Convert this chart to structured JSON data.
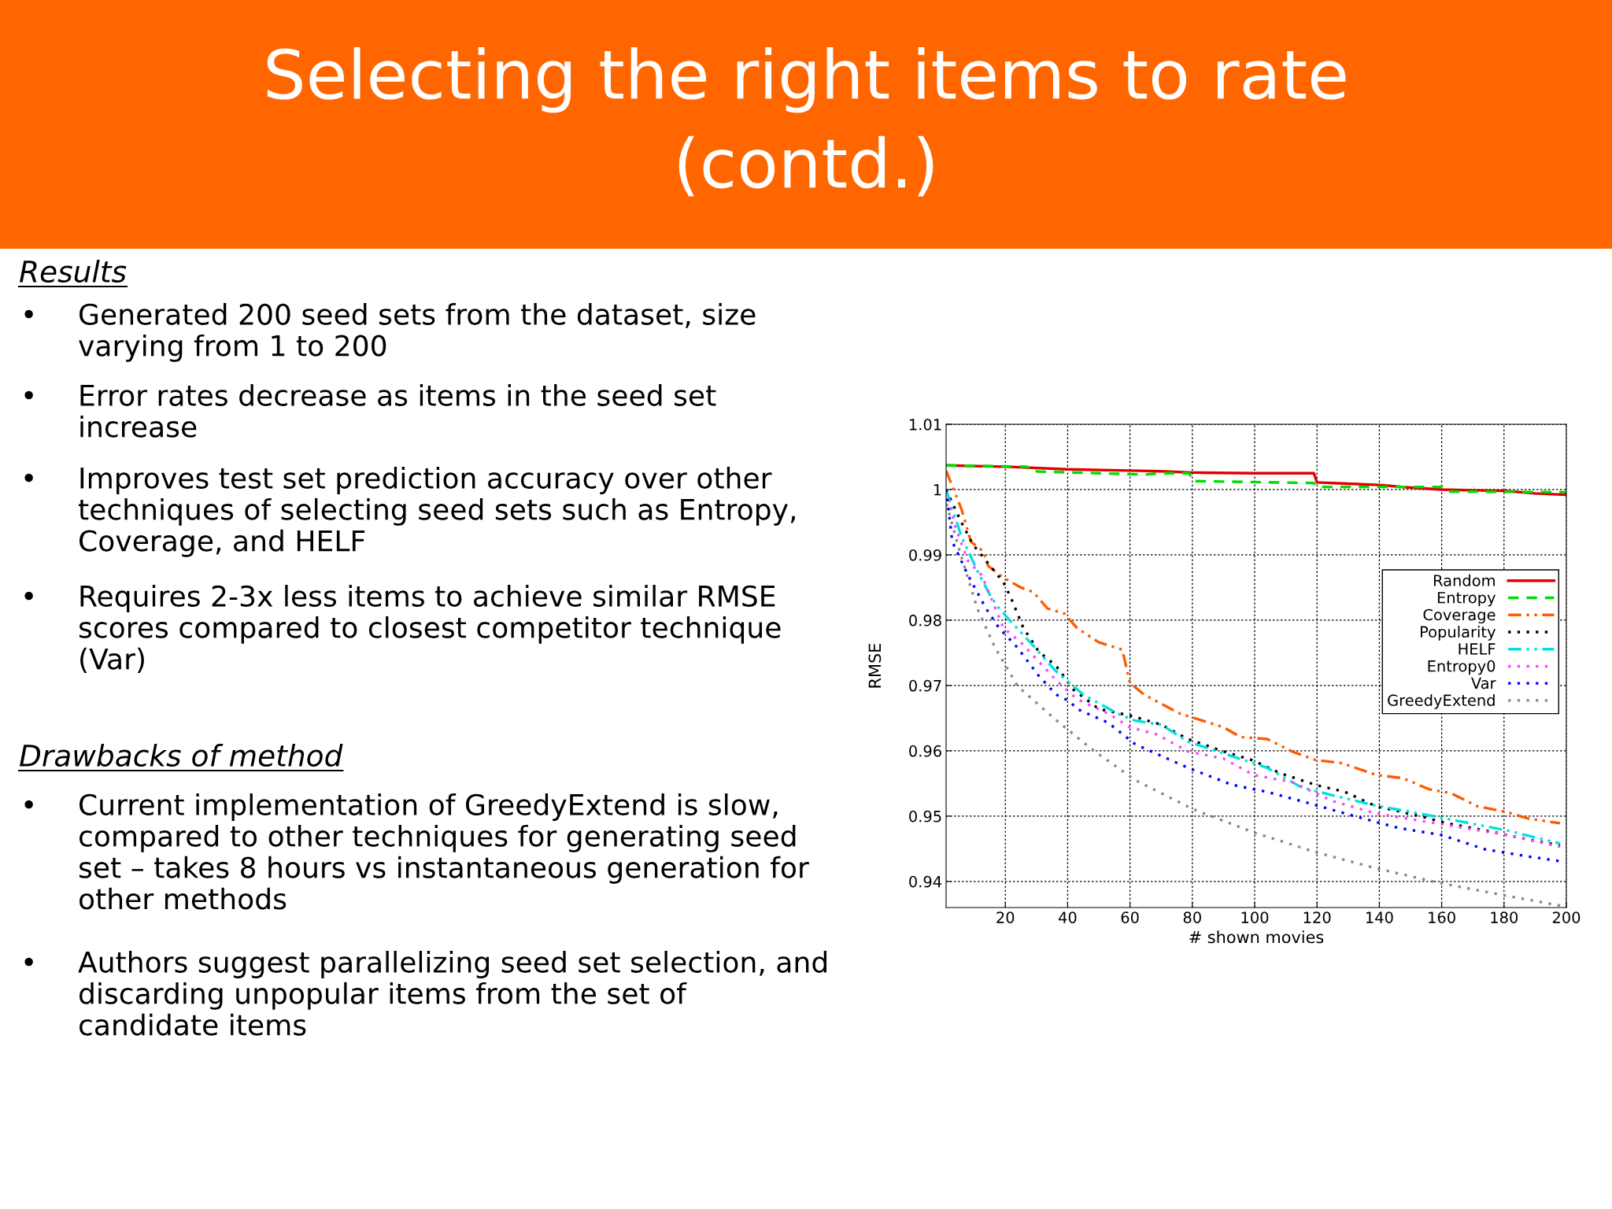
{
  "chart_data": {
    "type": "line",
    "title": "Selecting the right items to rate\n(contd.)",
    "xlabel": "# shown movies",
    "ylabel": "RMSE",
    "xlim": [
      1,
      200
    ],
    "xticks": [
      20,
      40,
      60,
      80,
      100,
      120,
      140,
      160,
      180,
      200
    ],
    "ylim": [
      0.936,
      1.01
    ],
    "yticks": [
      0.94,
      0.95,
      0.96,
      0.97,
      0.98,
      0.99,
      {
        "value": 1.0,
        "label": "1"
      },
      1.01
    ],
    "grid": true,
    "legend": "right",
    "marker": "none",
    "annotations": [
      "Results",
      "• Generated 200 seed sets from the dataset, size varying from 1 to 200",
      "• Error rates decrease as items in the seed set increase",
      "• Improves test set prediction accuracy over other techniques of selecting seed sets such as Entropy, Coverage, and HELF",
      "• Requires 2-3x less items to achieve similar RMSE scores compared to closest competitor technique (Var)",
      "Drawbacks of method",
      "• Current implementation of GreedyExtend is slow, compared to other techniques for generating seed set – takes 8 hours vs instantaneous generation for other methods",
      "• Authors suggest parallelizing seed set selection, and discarding unpopular items from the set of candidate items"
    ],
    "series": [
      {
        "name": "Random",
        "color": "#e00000",
        "line_style": "solid",
        "x": [
          1,
          20,
          40,
          60,
          70,
          80,
          100,
          119,
          120,
          130,
          140,
          150,
          160,
          170,
          180,
          190,
          200
        ],
        "values": [
          1.0037,
          1.0035,
          1.0031,
          1.0029,
          1.0028,
          1.0026,
          1.0025,
          1.0025,
          1.0011,
          1.0009,
          1.0007,
          1.0003,
          1.0,
          0.9999,
          0.9998,
          0.9994,
          0.9992
        ]
      },
      {
        "name": "Entropy",
        "color": "#00dd00",
        "line_style": "dashed",
        "x": [
          1,
          27,
          28,
          50,
          65,
          70,
          79,
          80,
          119,
          120,
          160,
          162,
          200
        ],
        "values": [
          1.0037,
          1.0035,
          1.0028,
          1.0025,
          1.0023,
          1.0025,
          1.0025,
          1.0013,
          1.001,
          1.0004,
          1.0004,
          0.9997,
          0.9996
        ]
      },
      {
        "name": "Coverage",
        "color": "#ff5a00",
        "line_style": "dashdot",
        "x": [
          1,
          6,
          9,
          13,
          14.5,
          19.4,
          25,
          29,
          33.5,
          39,
          43,
          50,
          57.5,
          60,
          64.5,
          76,
          90,
          95.5,
          104,
          112,
          119.5,
          128,
          139,
          147.6,
          156,
          163,
          171.5,
          181,
          188,
          198
        ],
        "values": [
          1.0029,
          0.9969,
          0.992,
          0.9905,
          0.9883,
          0.9865,
          0.985,
          0.9843,
          0.9818,
          0.981,
          0.9788,
          0.9766,
          0.9755,
          0.9704,
          0.9686,
          0.9657,
          0.9636,
          0.9621,
          0.9618,
          0.9599,
          0.9586,
          0.9581,
          0.9563,
          0.9558,
          0.9541,
          0.9535,
          0.9515,
          0.9506,
          0.9496,
          0.9489
        ]
      },
      {
        "name": "Popularity",
        "color": "#000000",
        "line_style": "dotted",
        "x": [
          1,
          6,
          9.6,
          13.8,
          19.4,
          22,
          25.8,
          30.7,
          36.3,
          42,
          50,
          60,
          70,
          78.6,
          90,
          99.7,
          108,
          119.4,
          129,
          139,
          153,
          161.7,
          174,
          188,
          198
        ],
        "values": [
          1.0,
          0.9949,
          0.9916,
          0.9891,
          0.9858,
          0.9832,
          0.9788,
          0.9752,
          0.973,
          0.9693,
          0.9664,
          0.9654,
          0.964,
          0.9618,
          0.9599,
          0.9585,
          0.9566,
          0.9548,
          0.9537,
          0.9515,
          0.95,
          0.9489,
          0.9478,
          0.9464,
          0.9455
        ]
      },
      {
        "name": "HELF",
        "color": "#00e0e0",
        "line_style": "dashdot",
        "x": [
          1,
          6,
          11,
          15,
          18,
          20.8,
          28,
          36,
          45,
          56,
          61.7,
          70,
          78.6,
          90,
          104,
          115,
          126.5,
          139,
          153,
          167,
          181,
          198
        ],
        "values": [
          1.0,
          0.9927,
          0.9876,
          0.9839,
          0.9818,
          0.9803,
          0.9766,
          0.9723,
          0.9686,
          0.9657,
          0.9646,
          0.964,
          0.9614,
          0.9596,
          0.9574,
          0.9544,
          0.953,
          0.9516,
          0.9504,
          0.9491,
          0.9478,
          0.9458
        ]
      },
      {
        "name": "Entropy0",
        "color": "#ff44ff",
        "line_style": "dotted",
        "x": [
          1,
          4,
          8,
          12.4,
          15,
          19.4,
          25,
          30.7,
          36.3,
          43,
          53,
          60,
          68.7,
          78.6,
          90,
          99.7,
          112,
          125,
          139,
          153,
          167,
          181,
          198
        ],
        "values": [
          1.0,
          0.9942,
          0.9891,
          0.9869,
          0.9839,
          0.9788,
          0.9766,
          0.9737,
          0.9708,
          0.9679,
          0.9657,
          0.9636,
          0.9625,
          0.9599,
          0.9588,
          0.9563,
          0.9552,
          0.9523,
          0.9504,
          0.9493,
          0.9482,
          0.9471,
          0.9453
        ]
      },
      {
        "name": "Var",
        "color": "#0000ff",
        "line_style": "dotted",
        "x": [
          1,
          3,
          8,
          13.8,
          18,
          23.7,
          30.7,
          36.3,
          40.6,
          43,
          53,
          61.7,
          78.6,
          92.7,
          104,
          118,
          132,
          146,
          160,
          174,
          188,
          198
        ],
        "values": [
          1.0,
          0.992,
          0.9869,
          0.9818,
          0.9788,
          0.9759,
          0.9715,
          0.9686,
          0.9676,
          0.9664,
          0.9643,
          0.961,
          0.9574,
          0.9548,
          0.9537,
          0.9519,
          0.95,
          0.9482,
          0.9471,
          0.9449,
          0.9438,
          0.9431
        ]
      },
      {
        "name": "GreedyExtend",
        "color": "#888888",
        "line_style": "dotted",
        "x": [
          1.1,
          5.4,
          11,
          16.6,
          23.7,
          25.8,
          36.3,
          47.6,
          61.7,
          80,
          99.7,
          119.4,
          139,
          159,
          178.6,
          198
        ],
        "values": [
          0.9978,
          0.9905,
          0.9818,
          0.9759,
          0.9701,
          0.9691,
          0.9647,
          0.9603,
          0.9555,
          0.9511,
          0.9475,
          0.9445,
          0.942,
          0.9398,
          0.938,
          0.9363
        ]
      }
    ]
  }
}
